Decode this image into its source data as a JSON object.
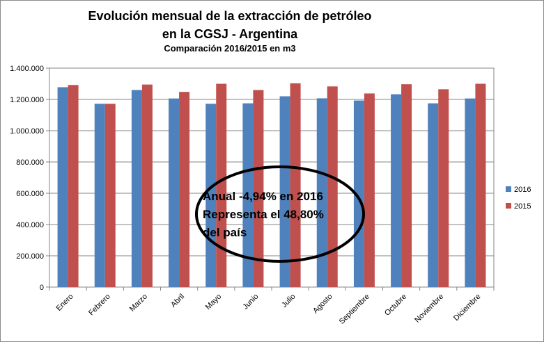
{
  "chart_data": {
    "type": "bar",
    "title_line1": "Evolución  mensual de la extracción de petróleo",
    "title_line2": "en la CGSJ - Argentina",
    "subtitle": "Comparación 2016/2015 en m3",
    "categories": [
      "Enero",
      "Febrero",
      "Marzo",
      "Abril",
      "Mayo",
      "Junio",
      "Julio",
      "Agosto",
      "Septiembre",
      "Octubre",
      "Noviembre",
      "Diciembre"
    ],
    "series": [
      {
        "name": "2016",
        "color": "#4f81bd",
        "values": [
          1278000,
          1172000,
          1260000,
          1206000,
          1172000,
          1175000,
          1220000,
          1207000,
          1193000,
          1233000,
          1175000,
          1206000
        ]
      },
      {
        "name": "2015",
        "color": "#c0504d",
        "values": [
          1292000,
          1172000,
          1295000,
          1248000,
          1300000,
          1260000,
          1303000,
          1283000,
          1238000,
          1297000,
          1265000,
          1300000
        ]
      }
    ],
    "yticks": [
      "0",
      "200.000",
      "400.000",
      "600.000",
      "800.000",
      "1.000.000",
      "1.200.000",
      "1.400.000"
    ],
    "ylim": [
      0,
      1400000
    ],
    "grid": true,
    "legend_position": "right",
    "annotation": [
      "Anual -4,94% en 2016",
      "Representa el 48,80%",
      "del país"
    ]
  }
}
